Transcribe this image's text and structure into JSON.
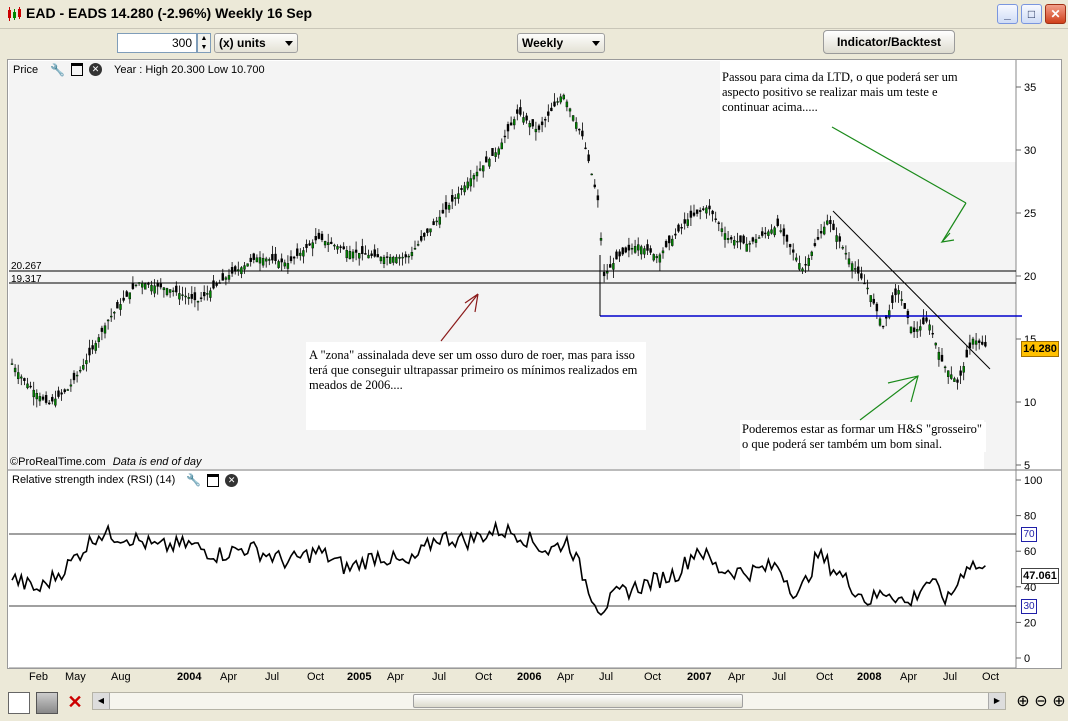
{
  "window": {
    "title": "EAD - EADS    14.280 (-2.96%)    Weekly  16 Sep",
    "buttons": [
      "minimize",
      "maximize",
      "close"
    ]
  },
  "toolbar": {
    "units_value": "300",
    "units_label": "(x) units",
    "period_label": "Weekly",
    "indicator_button": "Indicator/Backtest"
  },
  "price_panel": {
    "label": "Price",
    "info": "Year : High 20.300 Low 10.700",
    "copyright": "©ProRealTime.com",
    "copyright_note": "Data is end of day",
    "current_price": "14.280",
    "hline_labels": [
      "20.267",
      "19.317"
    ],
    "y_ticks": [
      "35",
      "30",
      "25",
      "20",
      "15",
      "10",
      "5"
    ]
  },
  "rsi_panel": {
    "label": "Relative strength index (RSI) (14)",
    "current_value": "47.061",
    "y_ticks": [
      "100",
      "80",
      "60",
      "40",
      "20",
      "0"
    ],
    "overbought": "70",
    "oversold": "30"
  },
  "x_axis": {
    "labels": [
      "Feb",
      "May",
      "Aug",
      "2004",
      "Apr",
      "Jul",
      "Oct",
      "2005",
      "Apr",
      "Jul",
      "Oct",
      "2006",
      "Apr",
      "Jul",
      "Oct",
      "2007",
      "Apr",
      "Jul",
      "Oct",
      "2008",
      "Apr",
      "Jul",
      "Oct"
    ]
  },
  "annotations": {
    "ltd_note": "Passou para cima da LTD, o que poderá ser um aspecto positivo se realizar mais um teste e continuar acima.....",
    "zona_note": "A \"zona\" assinalada deve ser um osso duro de roer, mas para isso terá que conseguir ultrapassar primeiro os mínimos realizados em meados de 2006....",
    "hs_note": "Poderemos estar as formar um H&S \"grosseiro\" o que poderá ser também um bom sinal."
  },
  "colors": {
    "accent_price_tag": "#ffc000",
    "rsi_level_color": "#1f1fa8",
    "support_line": "#0000cc",
    "arrow_green": "#1a8a1a",
    "arrow_red": "#8b1a1a"
  }
}
